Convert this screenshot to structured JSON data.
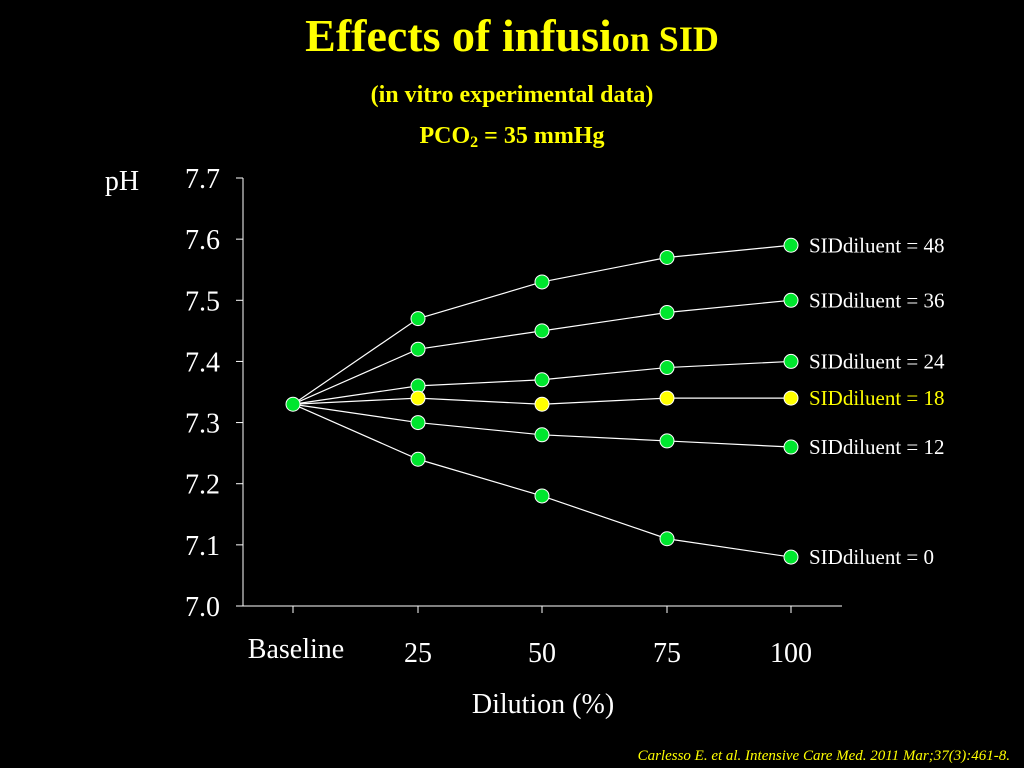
{
  "title": {
    "main": "Effects of infusi",
    "main_small": "on SID",
    "subtitle": "(in vitro experimental data)",
    "pco2_label": "PCO",
    "pco2_sub": "2",
    "pco2_value": " = 35 mmHg"
  },
  "citation": "Carlesso E. et al. Intensive Care Med. 2011 Mar;37(3):461-8.",
  "colors": {
    "background": "#000000",
    "title": "#ffff00",
    "text": "#ffffff",
    "marker": "#00e62e",
    "highlight": "#ffff00"
  },
  "chart_data": {
    "type": "line",
    "title": "",
    "xlabel": "Dilution (%)",
    "ylabel": "pH",
    "categories": [
      "Baseline",
      "25",
      "50",
      "75",
      "100"
    ],
    "ylim": [
      7.0,
      7.7
    ],
    "yticks": [
      "7.0",
      "7.1",
      "7.2",
      "7.3",
      "7.4",
      "7.5",
      "7.6",
      "7.7"
    ],
    "grid": false,
    "baseline_value": 7.33,
    "series": [
      {
        "name": "SIDdiluent = 48",
        "values": [
          7.33,
          7.47,
          7.53,
          7.57,
          7.59
        ],
        "highlight": false
      },
      {
        "name": "SIDdiluent = 36",
        "values": [
          7.33,
          7.42,
          7.45,
          7.48,
          7.5
        ],
        "highlight": false
      },
      {
        "name": "SIDdiluent = 24",
        "values": [
          7.33,
          7.36,
          7.37,
          7.39,
          7.4
        ],
        "highlight": false
      },
      {
        "name": "SIDdiluent = 18",
        "values": [
          7.33,
          7.34,
          7.33,
          7.34,
          7.34
        ],
        "highlight": true
      },
      {
        "name": "SIDdiluent = 12",
        "values": [
          7.33,
          7.3,
          7.28,
          7.27,
          7.26
        ],
        "highlight": false
      },
      {
        "name": "SIDdiluent = 0",
        "values": [
          7.33,
          7.24,
          7.18,
          7.11,
          7.08
        ],
        "highlight": false
      }
    ]
  }
}
